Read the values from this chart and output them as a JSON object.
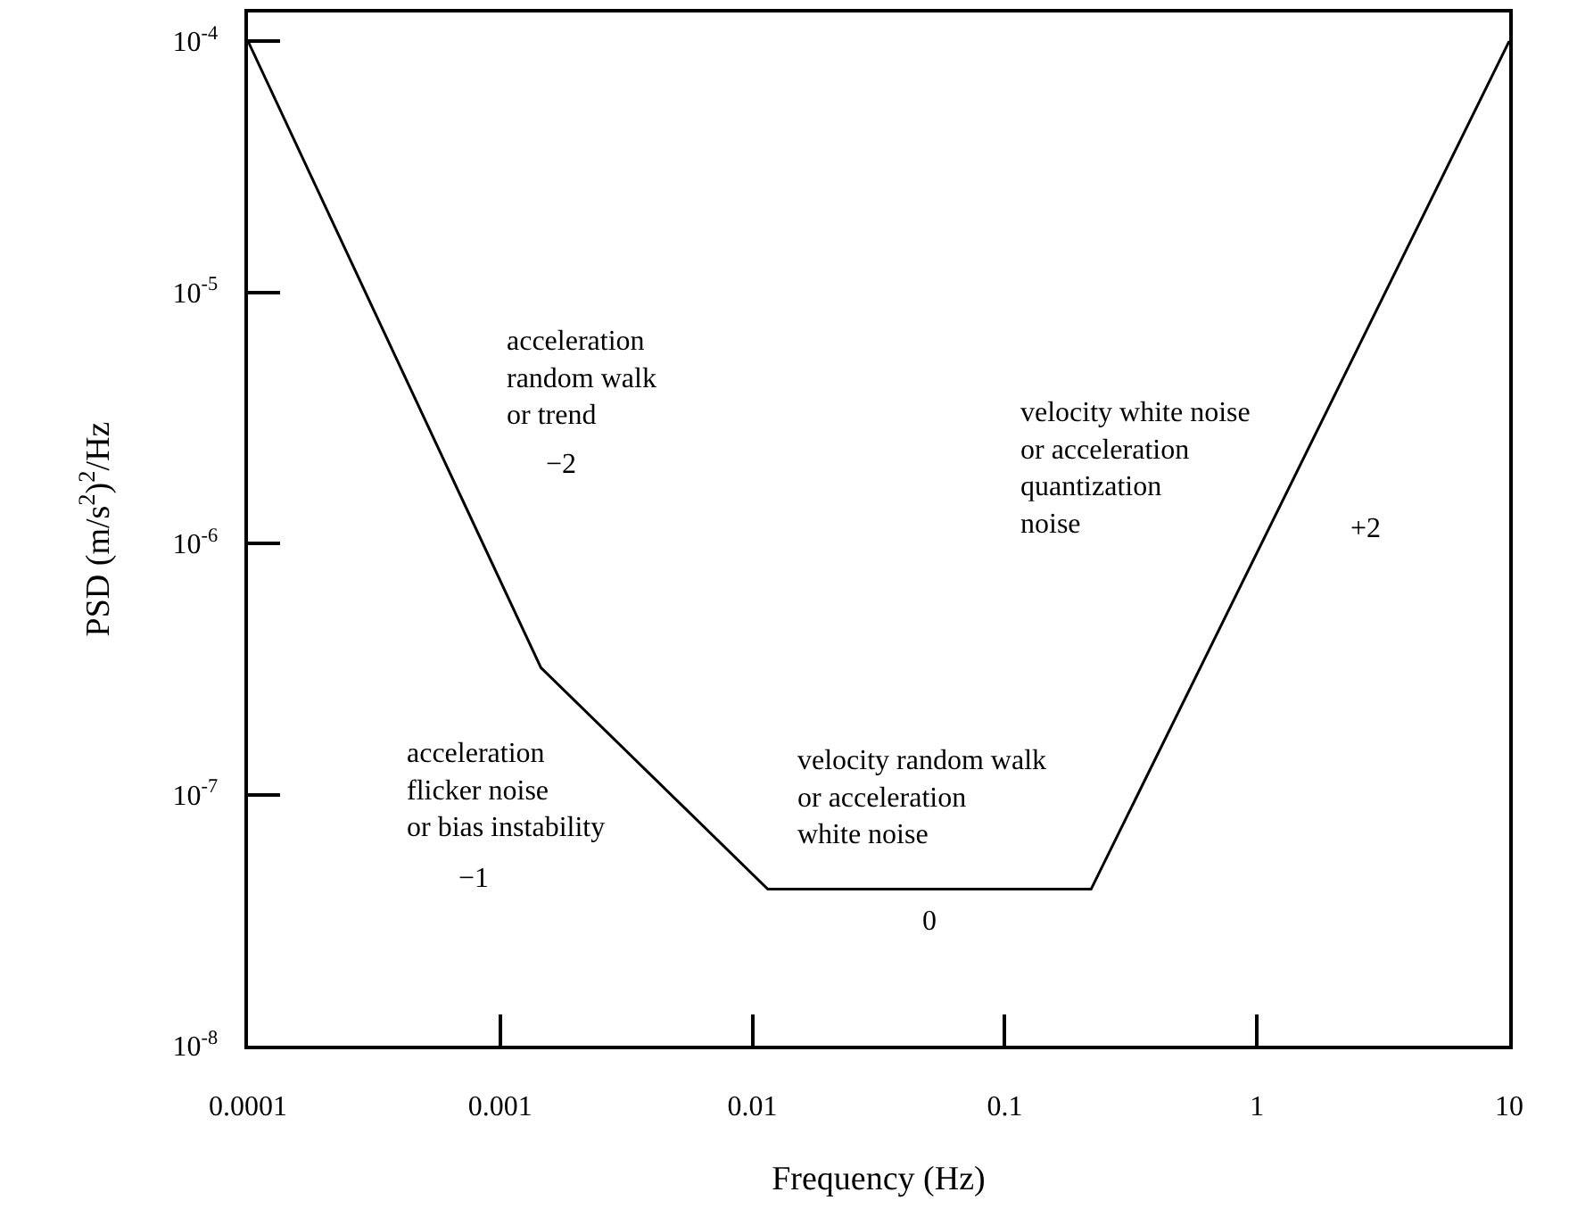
{
  "chart_data": {
    "type": "line",
    "x": [
      0.0001,
      0.00145,
      0.0115,
      0.22,
      10
    ],
    "series": [
      {
        "color": "#000000",
        "values": [
          0.0001,
          3.2e-07,
          4.2e-08,
          4.2e-08,
          0.0001
        ]
      }
    ],
    "xlabel": "Frequency (Hz)",
    "ylabel": "PSD (m/s$^{2}$)$^{2}$/Hz",
    "log": "xy",
    "xlim": [
      0.0001,
      10
    ],
    "ylim": [
      1e-08,
      0.00013
    ],
    "xticks": [
      {
        "value": 0.0001,
        "label": "0.0001"
      },
      {
        "value": 0.001,
        "label": "0.001"
      },
      {
        "value": 0.01,
        "label": "0.01"
      },
      {
        "value": 0.1,
        "label": "0.1"
      },
      1,
      10
    ],
    "yticks": [
      {
        "value": 1e-08,
        "label": "10$^{-8}$"
      },
      {
        "value": 1e-07,
        "label": "10$^{-7}$"
      },
      {
        "value": 1e-06,
        "label": "10$^{-6}$"
      },
      {
        "value": 1e-05,
        "label": "10$^{-5}$"
      },
      {
        "value": 0.0001,
        "label": "10$^{-4}$"
      }
    ],
    "legend": false,
    "marker": "none",
    "line_style": "solid",
    "annotations": [
      "acceleration\nrandom walk\nor trend",
      "−2",
      "acceleration\nflicker noise\nor bias instability",
      "−1",
      "velocity random walk\nor acceleration\nwhite noise",
      "0",
      "velocity white noise\nor acceleration\nquantization\nnoise",
      "+2"
    ]
  }
}
